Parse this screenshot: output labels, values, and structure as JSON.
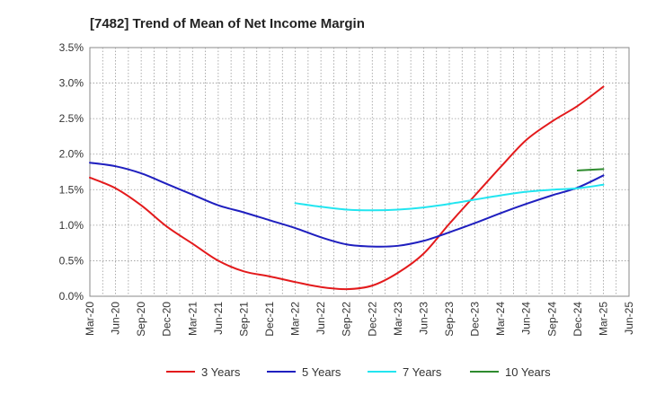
{
  "chart_data": {
    "type": "line",
    "title": "[7482]  Trend of Mean of Net Income Margin",
    "y_ticks": [
      "0.0%",
      "0.5%",
      "1.0%",
      "1.5%",
      "2.0%",
      "2.5%",
      "3.0%",
      "3.5%"
    ],
    "x_ticks": [
      "Mar-20",
      "Jun-20",
      "Sep-20",
      "Dec-20",
      "Mar-21",
      "Jun-21",
      "Sep-21",
      "Dec-21",
      "Mar-22",
      "Jun-22",
      "Sep-22",
      "Dec-22",
      "Mar-23",
      "Jun-23",
      "Sep-23",
      "Dec-23",
      "Mar-24",
      "Jun-24",
      "Sep-24",
      "Dec-24",
      "Mar-25",
      "Jun-25"
    ],
    "ylim": [
      0,
      3.5
    ],
    "grid": true,
    "legend_position": "bottom",
    "series": [
      {
        "name": "3 Years",
        "color": "#e31a1c",
        "x": [
          "Mar-20",
          "Jun-20",
          "Sep-20",
          "Dec-20",
          "Mar-21",
          "Jun-21",
          "Sep-21",
          "Dec-21",
          "Mar-22",
          "Jun-22",
          "Sep-22",
          "Dec-22",
          "Mar-23",
          "Jun-23",
          "Sep-23",
          "Dec-23",
          "Mar-24",
          "Jun-24",
          "Sep-24",
          "Dec-24",
          "Mar-25"
        ],
        "values": [
          1.67,
          1.52,
          1.28,
          0.98,
          0.74,
          0.5,
          0.35,
          0.28,
          0.2,
          0.13,
          0.1,
          0.15,
          0.33,
          0.6,
          1.02,
          1.42,
          1.82,
          2.2,
          2.46,
          2.68,
          2.95
        ]
      },
      {
        "name": "5 Years",
        "color": "#1f1fbf",
        "x": [
          "Mar-20",
          "Jun-20",
          "Sep-20",
          "Dec-20",
          "Mar-21",
          "Jun-21",
          "Sep-21",
          "Dec-21",
          "Mar-22",
          "Jun-22",
          "Sep-22",
          "Dec-22",
          "Mar-23",
          "Jun-23",
          "Sep-23",
          "Dec-23",
          "Mar-24",
          "Jun-24",
          "Sep-24",
          "Dec-24",
          "Mar-25"
        ],
        "values": [
          1.88,
          1.83,
          1.73,
          1.58,
          1.43,
          1.28,
          1.18,
          1.07,
          0.96,
          0.83,
          0.73,
          0.7,
          0.71,
          0.78,
          0.9,
          1.03,
          1.17,
          1.3,
          1.42,
          1.53,
          1.7
        ]
      },
      {
        "name": "7 Years",
        "color": "#22e5f0",
        "x": [
          "Mar-22",
          "Jun-22",
          "Sep-22",
          "Dec-22",
          "Mar-23",
          "Jun-23",
          "Sep-23",
          "Dec-23",
          "Mar-24",
          "Jun-24",
          "Sep-24",
          "Dec-24",
          "Mar-25"
        ],
        "values": [
          1.31,
          1.26,
          1.22,
          1.21,
          1.22,
          1.25,
          1.3,
          1.36,
          1.42,
          1.47,
          1.5,
          1.52,
          1.57
        ]
      },
      {
        "name": "10 Years",
        "color": "#2e8b2e",
        "x": [
          "Dec-24",
          "Mar-25"
        ],
        "values": [
          1.77,
          1.79
        ]
      }
    ]
  }
}
